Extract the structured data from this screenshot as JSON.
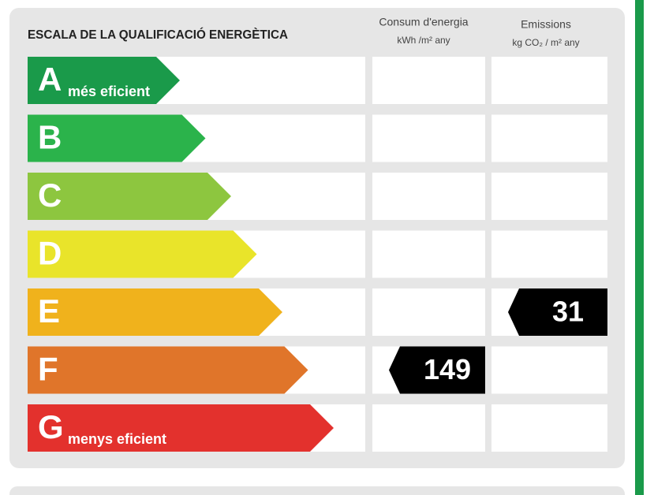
{
  "header": {
    "title": "ESCALA DE LA QUALIFICACIÓ ENERGÈTICA",
    "columns": [
      {
        "title": "Consum d'energia",
        "unit": "kWh /m² any"
      },
      {
        "title": "Emissions",
        "unit": "kg CO₂ / m² any"
      }
    ]
  },
  "rows": [
    {
      "letter": "A",
      "label": "més eficient",
      "color": "#1a9a4a"
    },
    {
      "letter": "B",
      "color": "#2bb34b"
    },
    {
      "letter": "C",
      "color": "#8dc63f"
    },
    {
      "letter": "D",
      "color": "#e9e42a"
    },
    {
      "letter": "E",
      "color": "#f0b21c"
    },
    {
      "letter": "F",
      "color": "#e0752a"
    },
    {
      "letter": "G",
      "label": "menys eficient",
      "color": "#e3312d"
    }
  ],
  "ratings": [
    {
      "value": 149,
      "class": "F"
    },
    {
      "value": 31,
      "class": "E"
    }
  ]
}
